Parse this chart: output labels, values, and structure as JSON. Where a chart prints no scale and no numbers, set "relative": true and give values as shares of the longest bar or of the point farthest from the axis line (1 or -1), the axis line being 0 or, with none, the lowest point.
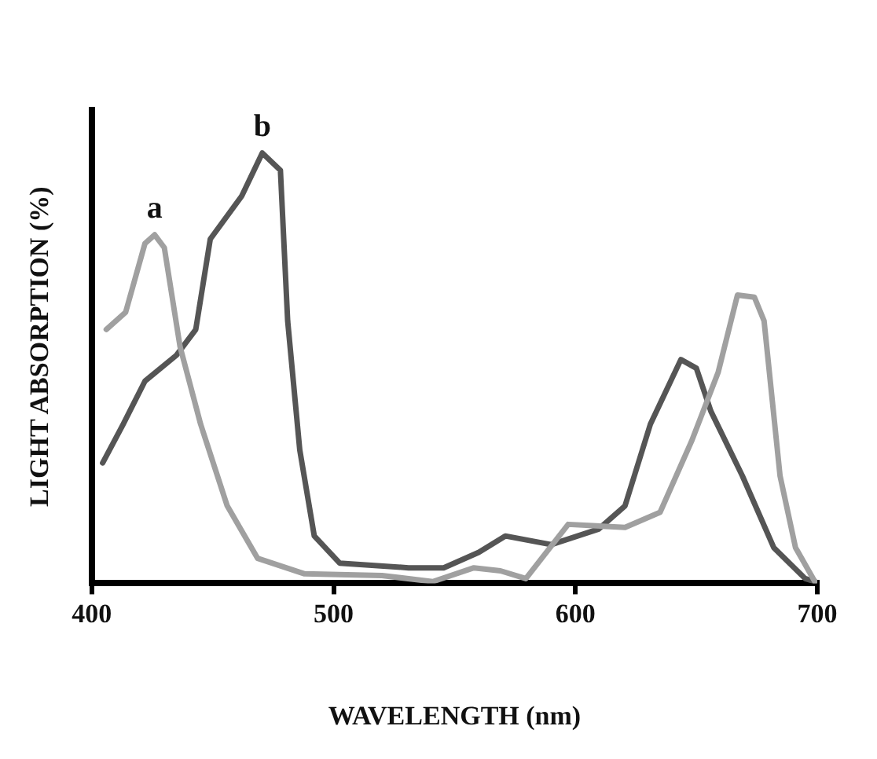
{
  "chart_data": {
    "type": "line",
    "xlabel": "WAVELENGTH (nm)",
    "ylabel": "LIGHT ABSORPTION (%)",
    "relative": true,
    "xlim": [
      400,
      700
    ],
    "xticks": [
      400,
      500,
      600,
      700
    ],
    "grid": false,
    "legend": false,
    "marker": "none",
    "line_style": "solid",
    "series": [
      {
        "name": "a",
        "color": "#a0a0a0",
        "x": [
          406,
          414,
          422,
          426,
          430,
          436.5,
          445,
          456,
          468.6,
          488,
          520,
          541,
          558,
          569,
          579.5,
          597,
          620.5,
          635,
          648,
          659,
          667,
          674,
          678,
          684.6,
          691,
          699
        ],
        "values": [
          0.59,
          0.63,
          0.79,
          0.81,
          0.78,
          0.55,
          0.37,
          0.18,
          0.058,
          0.022,
          0.018,
          0.004,
          0.036,
          0.029,
          0.011,
          0.137,
          0.13,
          0.165,
          0.33,
          0.49,
          0.67,
          0.665,
          0.61,
          0.25,
          0.083,
          0.004
        ]
      },
      {
        "name": "b",
        "color": "#555555",
        "x": [
          404.5,
          413,
          422,
          435,
          443,
          449,
          462,
          470.5,
          478,
          481,
          486,
          492,
          502.5,
          531,
          545.5,
          560,
          571,
          590,
          609.6,
          620.5,
          631,
          643.6,
          650,
          656,
          669,
          682,
          695,
          699
        ],
        "values": [
          0.28,
          0.37,
          0.47,
          0.53,
          0.59,
          0.8,
          0.9,
          1.0,
          0.96,
          0.61,
          0.31,
          0.11,
          0.047,
          0.036,
          0.036,
          0.072,
          0.11,
          0.09,
          0.126,
          0.18,
          0.37,
          0.52,
          0.5,
          0.4,
          0.25,
          0.083,
          0.011,
          0.004
        ]
      }
    ]
  }
}
